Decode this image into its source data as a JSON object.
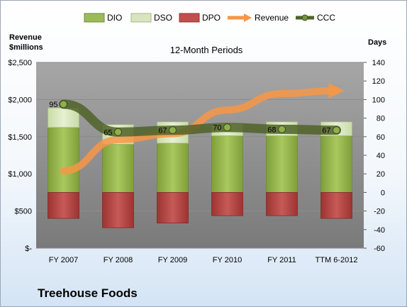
{
  "company": "Treehouse Foods",
  "chart_data": {
    "type": "bar",
    "subtitle": "12-Month Periods",
    "left_axis_label_line1": "Revenue",
    "left_axis_label_line2": "$millions",
    "right_axis_label": "Days",
    "categories": [
      "FY 2007",
      "FY 2008",
      "FY 2009",
      "FY 2010",
      "FY 2011",
      "TTM 6-2012"
    ],
    "left_ticks": [
      "$-",
      "$500",
      "$1,000",
      "$1,500",
      "$2,000",
      "$2,500"
    ],
    "left_ylim": [
      0,
      2500
    ],
    "right_ticks": [
      "-60",
      "-40",
      "-20",
      "0",
      "20",
      "40",
      "60",
      "80",
      "100",
      "120",
      "140"
    ],
    "right_ylim": [
      -60,
      140
    ],
    "legend": [
      "DIO",
      "DSO",
      "DPO",
      "Revenue",
      "CCC"
    ],
    "legend_position": "top",
    "grid": true,
    "series": [
      {
        "name": "DIO",
        "axis": "right",
        "values": [
          70,
          52,
          53,
          61,
          61,
          61
        ]
      },
      {
        "name": "DSO",
        "axis": "right",
        "values": [
          21,
          21,
          23,
          13,
          15,
          15
        ]
      },
      {
        "name": "DPO",
        "axis": "right",
        "values": [
          -28,
          -38,
          -33,
          -25,
          -25,
          -28
        ]
      },
      {
        "name": "Revenue",
        "axis": "left",
        "values": [
          1040,
          1460,
          1540,
          1860,
          2080,
          2120
        ]
      },
      {
        "name": "CCC",
        "axis": "right",
        "values": [
          95,
          65,
          67,
          70,
          68,
          67
        ]
      }
    ],
    "ccc_labels": [
      "95",
      "65",
      "67",
      "70",
      "68",
      "67"
    ],
    "colors": {
      "DIO": "#9bbb59",
      "DSO": "#d7e4bd",
      "DPO": "#c0504d",
      "Revenue": "#f79646",
      "CCC": "#4f6228",
      "plot_bg": "#7f7f7f"
    }
  }
}
